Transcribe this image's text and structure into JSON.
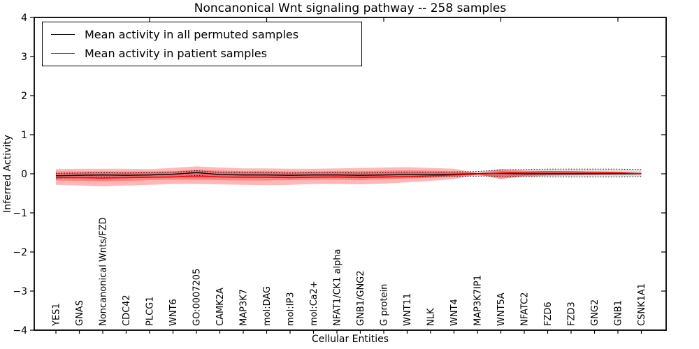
{
  "chart_data": {
    "type": "line",
    "title": "Noncanonical Wnt signaling pathway -- 258 samples",
    "xlabel": "Cellular Entities",
    "ylabel": "Inferred Activity",
    "ylim": [
      -4,
      4
    ],
    "yticks": [
      4,
      3,
      2,
      1,
      0,
      -1,
      -2,
      -3,
      -4
    ],
    "grid": false,
    "legend_position": "upper left",
    "categories": [
      "YES1",
      "GNAS",
      "Noncanonical Wnts/FZD",
      "CDC42",
      "PLCG1",
      "WNT6",
      "GO:0007205",
      "CAMK2A",
      "MAP3K7",
      "mol:DAG",
      "mol:IP3",
      "mol:Ca2+",
      "NFAT1/CK1 alpha",
      "GNB1/GNG2",
      "G protein",
      "WNT11",
      "NLK",
      "WNT4",
      "MAP3K7IP1",
      "WNT5A",
      "NFATC2",
      "FZD6",
      "FZD3",
      "GNG2",
      "GNB1",
      "CSNK1A1"
    ],
    "series": [
      {
        "name": "Mean activity in all permuted samples",
        "color": "#000000",
        "values": [
          -0.05,
          -0.04,
          -0.03,
          -0.04,
          -0.03,
          -0.01,
          0.03,
          -0.02,
          -0.03,
          -0.03,
          -0.04,
          -0.03,
          -0.03,
          -0.04,
          -0.03,
          -0.02,
          -0.02,
          -0.01,
          0.0,
          0.01,
          0.0,
          0.0,
          0.0,
          0.0,
          0.0,
          0.0
        ]
      },
      {
        "name": "Mean activity in patient samples",
        "color": "#ff0000",
        "values": [
          -0.1,
          -0.1,
          -0.11,
          -0.1,
          -0.09,
          -0.08,
          -0.06,
          -0.08,
          -0.09,
          -0.09,
          -0.1,
          -0.09,
          -0.08,
          -0.09,
          -0.08,
          -0.07,
          -0.05,
          -0.03,
          -0.01,
          0.02,
          0.04,
          0.05,
          0.05,
          0.04,
          0.03,
          0.0
        ]
      }
    ],
    "bands": [
      {
        "name": "patient-sample-range-outer",
        "color": "rgba(255,0,0,0.28)",
        "top": [
          0.12,
          0.13,
          0.13,
          0.13,
          0.12,
          0.15,
          0.19,
          0.16,
          0.14,
          0.14,
          0.13,
          0.13,
          0.14,
          0.15,
          0.16,
          0.17,
          0.15,
          0.13,
          0.02,
          0.13,
          0.08,
          0.07,
          0.06,
          0.06,
          0.05,
          0.04
        ],
        "bottom": [
          -0.28,
          -0.3,
          -0.32,
          -0.3,
          -0.28,
          -0.26,
          -0.26,
          -0.27,
          -0.28,
          -0.29,
          -0.28,
          -0.26,
          -0.26,
          -0.27,
          -0.25,
          -0.22,
          -0.18,
          -0.14,
          -0.02,
          -0.12,
          -0.08,
          -0.05,
          -0.04,
          -0.03,
          -0.02,
          -0.01
        ]
      },
      {
        "name": "patient-sample-range-inner",
        "color": "rgba(255,0,0,0.28)",
        "top": [
          0.06,
          0.06,
          0.06,
          0.06,
          0.06,
          0.07,
          0.1,
          0.08,
          0.07,
          0.07,
          0.06,
          0.06,
          0.07,
          0.07,
          0.08,
          0.09,
          0.08,
          0.06,
          0.01,
          0.07,
          0.05,
          0.05,
          0.04,
          0.04,
          0.03,
          0.02
        ],
        "bottom": [
          -0.17,
          -0.18,
          -0.19,
          -0.18,
          -0.16,
          -0.15,
          -0.15,
          -0.16,
          -0.17,
          -0.17,
          -0.16,
          -0.15,
          -0.15,
          -0.16,
          -0.14,
          -0.12,
          -0.1,
          -0.07,
          -0.01,
          -0.14,
          -0.05,
          -0.03,
          -0.02,
          -0.02,
          -0.01,
          0.0
        ]
      },
      {
        "name": "permuted-sample-range",
        "color": "rgba(0,0,0,0.12)",
        "edge_style": "dotted",
        "top": [
          0.01,
          0.02,
          0.03,
          0.02,
          0.03,
          0.04,
          0.08,
          0.04,
          0.03,
          0.03,
          0.02,
          0.03,
          0.03,
          0.02,
          0.03,
          0.04,
          0.04,
          0.05,
          0.06,
          0.1,
          0.11,
          0.12,
          0.12,
          0.12,
          0.12,
          0.11
        ],
        "bottom": [
          -0.11,
          -0.1,
          -0.09,
          -0.1,
          -0.09,
          -0.08,
          -0.04,
          -0.08,
          -0.09,
          -0.09,
          -0.1,
          -0.09,
          -0.09,
          -0.1,
          -0.09,
          -0.08,
          -0.08,
          -0.07,
          -0.06,
          -0.06,
          -0.07,
          -0.08,
          -0.08,
          -0.08,
          -0.08,
          -0.07
        ]
      }
    ],
    "top_axis_tick_indices": [
      4,
      9,
      14,
      19,
      24
    ]
  }
}
